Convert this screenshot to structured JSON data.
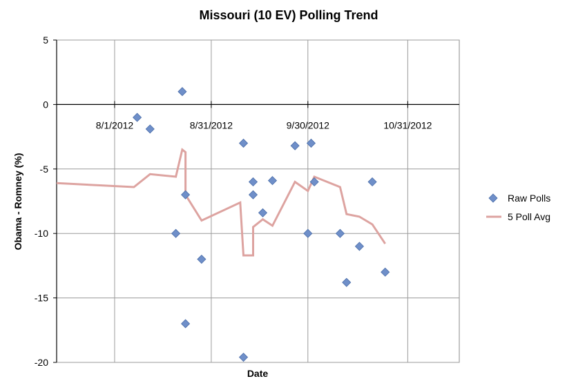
{
  "chart_data": {
    "type": "scatter",
    "title": "Missouri (10 EV) Polling Trend",
    "xlabel": "Date",
    "ylabel": "Obama - Romney (%)",
    "xlim": [
      "2012-07-14",
      "2012-11-16"
    ],
    "ylim": [
      -20,
      5
    ],
    "x_ticks": [
      "8/1/2012",
      "8/31/2012",
      "9/30/2012",
      "10/31/2012"
    ],
    "x_tick_dates": [
      "2012-08-01",
      "2012-08-31",
      "2012-09-30",
      "2012-10-31"
    ],
    "y_ticks": [
      5,
      0,
      -5,
      -10,
      -15,
      -20
    ],
    "grid": true,
    "legend_position": "right",
    "colors": {
      "raw_polls": "#6f8fc9",
      "raw_polls_edge": "#4a6da8",
      "avg": "#dda3a0",
      "grid": "#9a9a9a",
      "axis": "#000000"
    },
    "series": [
      {
        "name": "Raw Polls",
        "kind": "scatter",
        "points": [
          {
            "x": "2012-08-08",
            "y": -1
          },
          {
            "x": "2012-08-12",
            "y": -1.9
          },
          {
            "x": "2012-08-20",
            "y": -10
          },
          {
            "x": "2012-08-22",
            "y": 1
          },
          {
            "x": "2012-08-23",
            "y": -7
          },
          {
            "x": "2012-08-23",
            "y": -17
          },
          {
            "x": "2012-08-28",
            "y": -12
          },
          {
            "x": "2012-09-10",
            "y": -3
          },
          {
            "x": "2012-09-10",
            "y": -19.6
          },
          {
            "x": "2012-09-13",
            "y": -6
          },
          {
            "x": "2012-09-13",
            "y": -7
          },
          {
            "x": "2012-09-16",
            "y": -8.4
          },
          {
            "x": "2012-09-19",
            "y": -5.9
          },
          {
            "x": "2012-09-26",
            "y": -3.2
          },
          {
            "x": "2012-09-30",
            "y": -10
          },
          {
            "x": "2012-10-01",
            "y": -3
          },
          {
            "x": "2012-10-02",
            "y": -6
          },
          {
            "x": "2012-10-10",
            "y": -10
          },
          {
            "x": "2012-10-12",
            "y": -13.8
          },
          {
            "x": "2012-10-16",
            "y": -11
          },
          {
            "x": "2012-10-20",
            "y": -6
          },
          {
            "x": "2012-10-24",
            "y": -13
          }
        ]
      },
      {
        "name": "5 Poll Avg",
        "kind": "line",
        "points": [
          {
            "x": "2012-07-14",
            "y": -6.1
          },
          {
            "x": "2012-08-07",
            "y": -6.4
          },
          {
            "x": "2012-08-12",
            "y": -5.4
          },
          {
            "x": "2012-08-20",
            "y": -5.6
          },
          {
            "x": "2012-08-22",
            "y": -3.5
          },
          {
            "x": "2012-08-23",
            "y": -3.7
          },
          {
            "x": "2012-08-23",
            "y": -7
          },
          {
            "x": "2012-08-28",
            "y": -9
          },
          {
            "x": "2012-09-09",
            "y": -7.6
          },
          {
            "x": "2012-09-10",
            "y": -11.7
          },
          {
            "x": "2012-09-13",
            "y": -11.7
          },
          {
            "x": "2012-09-13",
            "y": -9.5
          },
          {
            "x": "2012-09-16",
            "y": -8.9
          },
          {
            "x": "2012-09-19",
            "y": -9.4
          },
          {
            "x": "2012-09-26",
            "y": -6
          },
          {
            "x": "2012-09-30",
            "y": -6.7
          },
          {
            "x": "2012-10-02",
            "y": -5.6
          },
          {
            "x": "2012-10-10",
            "y": -6.4
          },
          {
            "x": "2012-10-12",
            "y": -8.5
          },
          {
            "x": "2012-10-16",
            "y": -8.7
          },
          {
            "x": "2012-10-20",
            "y": -9.3
          },
          {
            "x": "2012-10-24",
            "y": -10.8
          }
        ]
      }
    ]
  }
}
